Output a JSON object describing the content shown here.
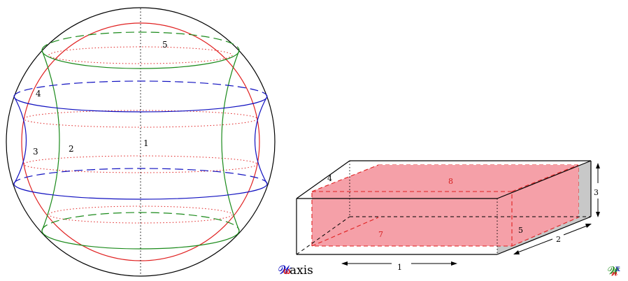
{
  "sphere_labels": {
    "l1": "1",
    "l2": "2",
    "l3": "3",
    "l4": "4",
    "l5": "5"
  },
  "box_labels": {
    "l1": "1",
    "l2": "2",
    "l3": "3",
    "l4": "4",
    "l5": "5",
    "l7": "7",
    "l8": "8"
  },
  "axis_caption": "axis",
  "colors": {
    "red": "#e02020",
    "green": "#1a8a1a",
    "blue": "#1010c0",
    "pink": "#f5a0a8",
    "gray": "#c8c8c8"
  }
}
